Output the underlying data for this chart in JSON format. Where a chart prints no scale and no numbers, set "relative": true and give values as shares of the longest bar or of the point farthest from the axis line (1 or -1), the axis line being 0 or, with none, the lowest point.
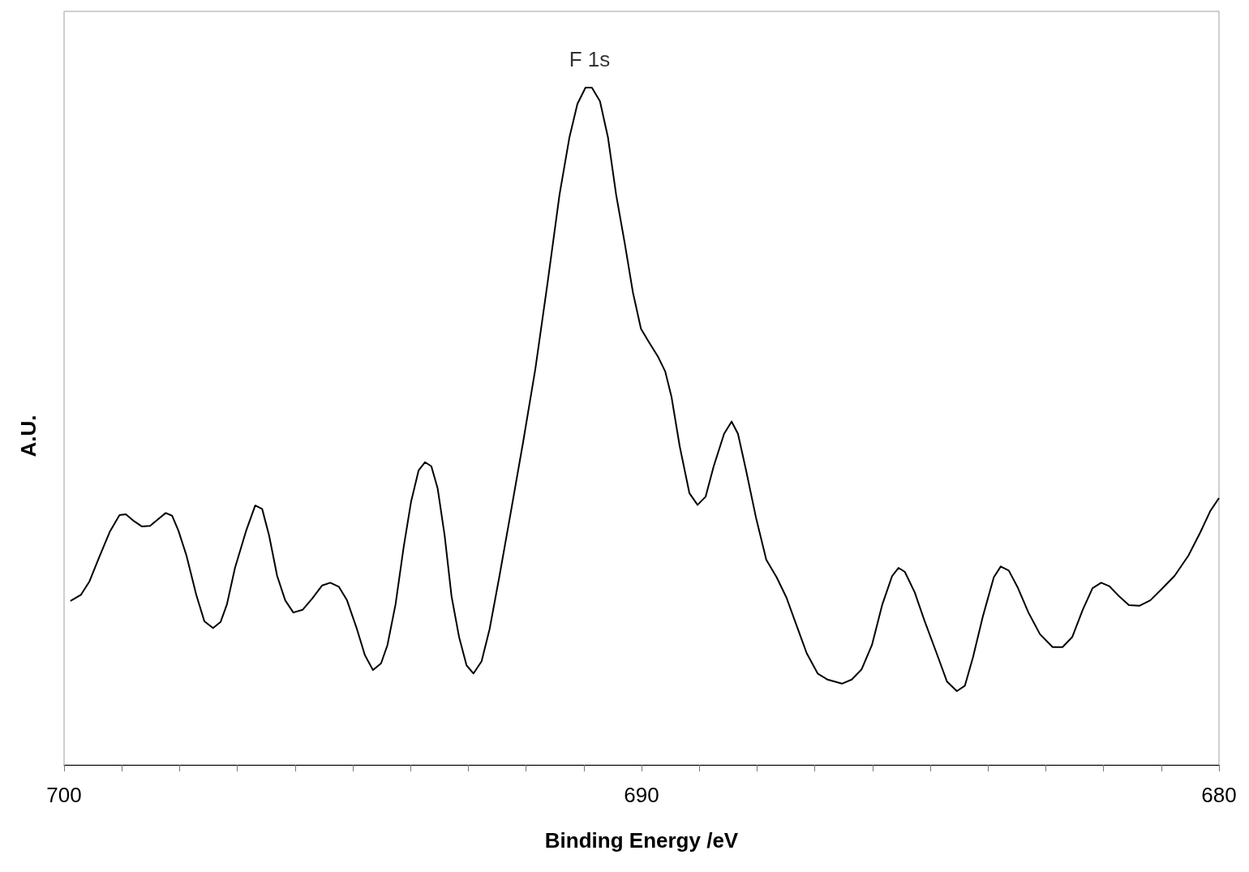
{
  "chart_data": {
    "type": "line",
    "xlabel": "Binding Energy /eV",
    "ylabel": "A.U.",
    "relative": true,
    "xlim": [
      700,
      680
    ],
    "xticks": [
      700,
      {
        "value": 699,
        "label": null
      },
      {
        "value": 698,
        "label": null
      },
      {
        "value": 697,
        "label": null
      },
      {
        "value": 696,
        "label": null
      },
      {
        "value": 695,
        "label": null
      },
      {
        "value": 694,
        "label": null
      },
      {
        "value": 693,
        "label": null
      },
      {
        "value": 692,
        "label": null
      },
      {
        "value": 691,
        "label": null
      },
      690,
      {
        "value": 689,
        "label": null
      },
      {
        "value": 688,
        "label": null
      },
      {
        "value": 687,
        "label": null
      },
      {
        "value": 686,
        "label": null
      },
      {
        "value": 685,
        "label": null
      },
      {
        "value": 684,
        "label": null
      },
      {
        "value": 683,
        "label": null
      },
      {
        "value": 682,
        "label": null
      },
      {
        "value": 681,
        "label": null
      },
      680
    ],
    "grid": false,
    "marker": "none",
    "line_style": "solid",
    "annotations": [
      {
        "text": "F 1s",
        "x": 690.9,
        "y": 1.0
      }
    ],
    "x": [
      699.89,
      699.71,
      699.56,
      699.4,
      699.21,
      699.04,
      698.93,
      698.79,
      698.65,
      698.51,
      698.37,
      698.24,
      698.13,
      698.02,
      697.88,
      697.71,
      697.57,
      697.42,
      697.29,
      697.18,
      697.04,
      696.85,
      696.69,
      696.57,
      696.45,
      696.31,
      696.17,
      696.03,
      695.87,
      695.7,
      695.53,
      695.39,
      695.24,
      695.1,
      694.93,
      694.79,
      694.65,
      694.51,
      694.4,
      694.26,
      694.12,
      693.99,
      693.86,
      693.75,
      693.64,
      693.53,
      693.41,
      693.29,
      693.16,
      693.03,
      692.91,
      692.77,
      692.63,
      692.46,
      692.26,
      692.05,
      691.84,
      691.63,
      691.42,
      691.25,
      691.11,
      690.97,
      690.86,
      690.72,
      690.58,
      690.44,
      690.29,
      690.15,
      690.01,
      689.87,
      689.71,
      689.59,
      689.48,
      689.34,
      689.17,
      689.03,
      688.89,
      688.75,
      688.57,
      688.44,
      688.33,
      688.19,
      688.02,
      687.84,
      687.66,
      687.49,
      687.32,
      687.14,
      686.95,
      686.78,
      686.53,
      686.36,
      686.19,
      686.01,
      685.83,
      685.66,
      685.55,
      685.44,
      685.27,
      685.1,
      684.89,
      684.71,
      684.54,
      684.4,
      684.26,
      684.09,
      683.9,
      683.78,
      683.64,
      683.48,
      683.3,
      683.1,
      682.88,
      682.71,
      682.54,
      682.36,
      682.19,
      682.04,
      681.9,
      681.73,
      681.56,
      681.38,
      681.19,
      681.0,
      680.77,
      680.53,
      680.32,
      680.15,
      680.0
    ],
    "series": [
      {
        "color": "#000000",
        "values": [
          0.242,
          0.251,
          0.271,
          0.305,
          0.344,
          0.369,
          0.37,
          0.36,
          0.352,
          0.353,
          0.363,
          0.372,
          0.368,
          0.346,
          0.309,
          0.251,
          0.212,
          0.202,
          0.211,
          0.237,
          0.291,
          0.345,
          0.383,
          0.378,
          0.339,
          0.279,
          0.243,
          0.225,
          0.229,
          0.246,
          0.265,
          0.269,
          0.263,
          0.243,
          0.201,
          0.162,
          0.14,
          0.15,
          0.177,
          0.237,
          0.321,
          0.389,
          0.435,
          0.447,
          0.441,
          0.408,
          0.339,
          0.249,
          0.189,
          0.147,
          0.135,
          0.153,
          0.201,
          0.279,
          0.375,
          0.477,
          0.584,
          0.71,
          0.842,
          0.926,
          0.976,
          1.0,
          1.0,
          0.98,
          0.926,
          0.842,
          0.77,
          0.698,
          0.644,
          0.624,
          0.602,
          0.581,
          0.543,
          0.471,
          0.401,
          0.384,
          0.396,
          0.441,
          0.489,
          0.507,
          0.489,
          0.435,
          0.366,
          0.303,
          0.277,
          0.247,
          0.207,
          0.165,
          0.135,
          0.126,
          0.12,
          0.126,
          0.141,
          0.177,
          0.237,
          0.279,
          0.291,
          0.285,
          0.255,
          0.213,
          0.165,
          0.123,
          0.109,
          0.117,
          0.159,
          0.219,
          0.277,
          0.293,
          0.287,
          0.261,
          0.225,
          0.193,
          0.174,
          0.174,
          0.189,
          0.229,
          0.261,
          0.269,
          0.264,
          0.249,
          0.236,
          0.235,
          0.243,
          0.259,
          0.279,
          0.309,
          0.344,
          0.375,
          0.394
        ]
      }
    ]
  }
}
